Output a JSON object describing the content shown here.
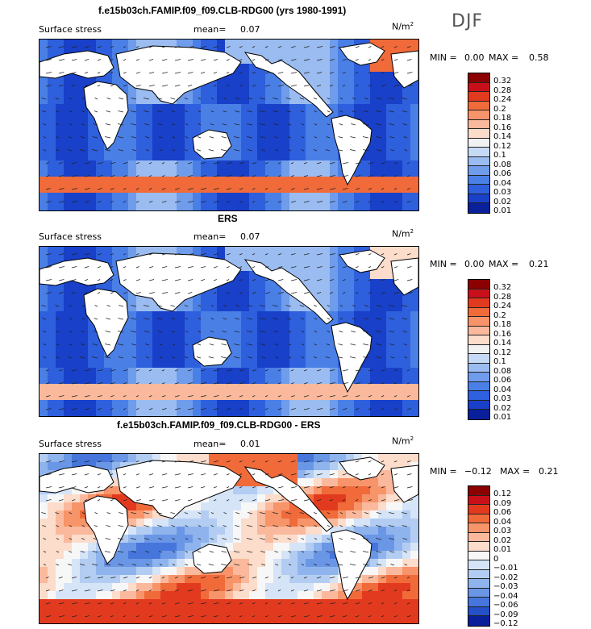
{
  "season": "DJF",
  "panels": [
    {
      "title": "f.e15b03ch.FAMIP.f09_f09.CLB-RDG00 (yrs 1980-1991)",
      "variable": "Surface stress",
      "mean_label": "mean=",
      "mean_value": "0.07",
      "units_base": "N/m",
      "units_exp": "2",
      "min_label": "MIN =",
      "min_value": "0.00",
      "max_label": "MAX =",
      "max_value": "0.58",
      "colorbar": [
        "0.32",
        "0.28",
        "0.24",
        "0.2",
        "0.18",
        "0.16",
        "0.14",
        "0.12",
        "0.1",
        "0.08",
        "0.06",
        "0.04",
        "0.03",
        "0.02",
        "0.01"
      ],
      "colors": [
        "#8b0000",
        "#c8101a",
        "#e23a1f",
        "#f06a3a",
        "#f7946a",
        "#fab99c",
        "#fcdccb",
        "#f2f2f2",
        "#c7daf5",
        "#9bbcf0",
        "#6f9ceb",
        "#4a7fe6",
        "#2e5fdc",
        "#1840c8",
        "#0a1f9a"
      ]
    },
    {
      "title": "ERS",
      "variable": "Surface stress",
      "mean_label": "mean=",
      "mean_value": "0.07",
      "units_base": "N/m",
      "units_exp": "2",
      "min_label": "MIN =",
      "min_value": "0.00",
      "max_label": "MAX =",
      "max_value": "0.21",
      "colorbar": [
        "0.32",
        "0.28",
        "0.24",
        "0.2",
        "0.18",
        "0.16",
        "0.14",
        "0.12",
        "0.1",
        "0.08",
        "0.06",
        "0.04",
        "0.03",
        "0.02",
        "0.01"
      ],
      "colors": [
        "#8b0000",
        "#c8101a",
        "#e23a1f",
        "#f06a3a",
        "#f7946a",
        "#fab99c",
        "#fcdccb",
        "#f2f2f2",
        "#c7daf5",
        "#9bbcf0",
        "#6f9ceb",
        "#4a7fe6",
        "#2e5fdc",
        "#1840c8",
        "#0a1f9a"
      ]
    },
    {
      "title": "f.e15b03ch.FAMIP.f09_f09.CLB-RDG00 - ERS",
      "variable": "Surface stress",
      "mean_label": "mean=",
      "mean_value": "0.01",
      "units_base": "N/m",
      "units_exp": "2",
      "min_label": "MIN =",
      "min_value": "−0.12",
      "max_label": "MAX =",
      "max_value": "0.21",
      "colorbar": [
        "0.12",
        "0.09",
        "0.06",
        "0.04",
        "0.03",
        "0.02",
        "0.01",
        "0",
        "−0.01",
        "−0.02",
        "−0.03",
        "−0.04",
        "−0.06",
        "−0.09",
        "−0.12"
      ],
      "colors": [
        "#8b0000",
        "#c8101a",
        "#e23a1f",
        "#f06a3a",
        "#f7946a",
        "#fab99c",
        "#fcdccb",
        "#f7f7f7",
        "#d6e4f7",
        "#b3cdf2",
        "#8fb4ed",
        "#6a96e6",
        "#4676dc",
        "#2450c8",
        "#0a1f9a"
      ]
    }
  ],
  "chart_data": [
    {
      "type": "heatmap",
      "title": "f.e15b03ch.FAMIP.f09_f09.CLB-RDG00 (yrs 1980-1991)",
      "variable": "Surface stress",
      "units": "N/m2",
      "mean": 0.07,
      "min": 0.0,
      "max": 0.58,
      "levels": [
        0.01,
        0.02,
        0.03,
        0.04,
        0.06,
        0.08,
        0.1,
        0.12,
        0.14,
        0.16,
        0.18,
        0.2,
        0.24,
        0.28,
        0.32
      ],
      "overlay": "wind stress vectors"
    },
    {
      "type": "heatmap",
      "title": "ERS",
      "variable": "Surface stress",
      "units": "N/m2",
      "mean": 0.07,
      "min": 0.0,
      "max": 0.21,
      "levels": [
        0.01,
        0.02,
        0.03,
        0.04,
        0.06,
        0.08,
        0.1,
        0.12,
        0.14,
        0.16,
        0.18,
        0.2,
        0.24,
        0.28,
        0.32
      ],
      "overlay": "wind stress vectors"
    },
    {
      "type": "heatmap",
      "title": "f.e15b03ch.FAMIP.f09_f09.CLB-RDG00 - ERS",
      "variable": "Surface stress",
      "units": "N/m2",
      "mean": 0.01,
      "min": -0.12,
      "max": 0.21,
      "levels": [
        -0.12,
        -0.09,
        -0.06,
        -0.04,
        -0.03,
        -0.02,
        -0.01,
        0,
        0.01,
        0.02,
        0.03,
        0.04,
        0.06,
        0.09,
        0.12
      ],
      "overlay": "wind stress vectors"
    }
  ]
}
